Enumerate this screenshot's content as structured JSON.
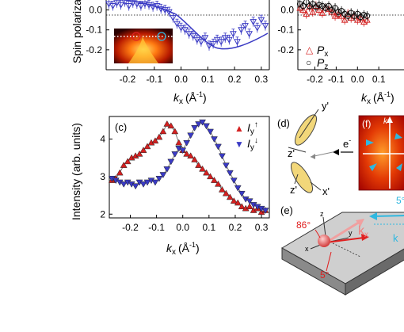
{
  "chart_data": [
    {
      "type": "scatter",
      "panel": "top-left",
      "ylabel": "Spin polarization",
      "xlabel_main": "k",
      "xlabel_sub": "x",
      "xlabel_unit": "(Å",
      "xlabel_exp": "-1",
      "xlabel_close": ")",
      "xlim": [
        -0.28,
        0.33
      ],
      "ylim": [
        -0.3,
        0.05
      ],
      "yticks": [
        "0.0",
        "-0.1",
        "-0.2"
      ],
      "xticks": [
        "-0.2",
        "-0.1",
        "0.0",
        "0.1",
        "0.2",
        "0.3"
      ],
      "series": [
        {
          "color": "#3a3ac4",
          "x": [
            -0.27,
            -0.255,
            -0.24,
            -0.225,
            -0.21,
            -0.195,
            -0.18,
            -0.165,
            -0.15,
            -0.135,
            -0.12,
            -0.105,
            -0.09,
            -0.075,
            -0.06,
            -0.045,
            -0.03,
            -0.015,
            0.0,
            0.015,
            0.03,
            0.045,
            0.06,
            0.075,
            0.09,
            0.105,
            0.12,
            0.135,
            0.15,
            0.165,
            0.18,
            0.195,
            0.21,
            0.225,
            0.24,
            0.255,
            0.27,
            0.285,
            0.3,
            0.315
          ],
          "y": [
            0.03,
            0.02,
            0.035,
            0.025,
            0.04,
            0.02,
            0.035,
            0.03,
            0.02,
            0.03,
            0.025,
            0.015,
            0.02,
            0.005,
            0.0,
            -0.01,
            -0.04,
            -0.07,
            -0.09,
            -0.1,
            -0.12,
            -0.13,
            -0.15,
            -0.16,
            -0.14,
            -0.18,
            -0.17,
            -0.15,
            -0.16,
            -0.14,
            -0.15,
            -0.12,
            -0.16,
            -0.1,
            -0.08,
            -0.12,
            -0.06,
            -0.09,
            -0.05,
            -0.08
          ]
        }
      ]
    },
    {
      "type": "scatter",
      "panel": "top-right",
      "xlabel_main": "k",
      "xlabel_sub": "x",
      "xlabel_unit": "(Å",
      "xlabel_exp": "-1",
      "xlabel_close": ")",
      "xlim": [
        -0.28,
        0.33
      ],
      "ylim": [
        -0.3,
        0.05
      ],
      "yticks": [
        "0.0",
        "-0.1",
        "-0.2"
      ],
      "xticks": [
        "-0.2",
        "-0.1",
        "0.0",
        "0.1"
      ],
      "legend": [
        {
          "symbol": "△",
          "label": "P",
          "sub": "x",
          "color": "#d42020"
        },
        {
          "symbol": "○",
          "label": "P",
          "sub": "z",
          "color": "#111111"
        }
      ],
      "series": [
        {
          "color": "#d42020",
          "x": [
            -0.27,
            -0.255,
            -0.24,
            -0.225,
            -0.21,
            -0.195,
            -0.18,
            -0.165,
            -0.15,
            -0.135,
            -0.12,
            -0.105,
            -0.09,
            -0.075,
            -0.06,
            -0.045,
            -0.03,
            -0.015,
            0.0,
            0.015,
            0.03,
            0.045
          ],
          "y": [
            0.01,
            0.0,
            -0.02,
            0.015,
            -0.01,
            0.02,
            0.0,
            -0.015,
            0.01,
            0.005,
            -0.01,
            -0.03,
            -0.02,
            -0.03,
            -0.05,
            -0.02,
            -0.04,
            -0.03,
            -0.05,
            -0.04,
            -0.06,
            -0.05
          ]
        },
        {
          "color": "#111111",
          "x": [
            -0.27,
            -0.255,
            -0.24,
            -0.225,
            -0.21,
            -0.195,
            -0.18,
            -0.165,
            -0.15,
            -0.135,
            -0.12,
            -0.105,
            -0.09,
            -0.075,
            -0.06,
            -0.045,
            -0.03,
            -0.015,
            0.0,
            0.015,
            0.03,
            0.045
          ],
          "y": [
            0.03,
            0.02,
            0.04,
            0.02,
            0.03,
            0.015,
            0.025,
            0.02,
            0.01,
            0.02,
            0.0,
            0.01,
            -0.01,
            -0.005,
            -0.02,
            -0.03,
            -0.015,
            -0.03,
            -0.02,
            -0.035,
            -0.025,
            -0.03
          ]
        }
      ]
    },
    {
      "type": "scatter",
      "panel": "c",
      "label": "(c)",
      "ylabel": "Intensity (arb. units)",
      "xlabel_main": "k",
      "xlabel_sub": "x",
      "xlabel_unit": "(Å",
      "xlabel_exp": "-1",
      "xlabel_close": ")",
      "xlim": [
        -0.28,
        0.33
      ],
      "ylim": [
        1.9,
        4.6
      ],
      "yticks": [
        "4",
        "3",
        "2"
      ],
      "xticks": [
        "-0.2",
        "-0.1",
        "0.0",
        "0.1",
        "0.2",
        "0.3"
      ],
      "legend": [
        {
          "symbol": "▲",
          "label": "I",
          "sub": "y",
          "arrow": "↑",
          "color": "#d42020"
        },
        {
          "symbol": "▼",
          "label": "I",
          "sub": "y",
          "arrow": "↓",
          "color": "#3a3ac4"
        }
      ],
      "series": [
        {
          "color": "#d42020",
          "marker": "up",
          "x": [
            -0.27,
            -0.255,
            -0.24,
            -0.225,
            -0.21,
            -0.195,
            -0.18,
            -0.165,
            -0.15,
            -0.135,
            -0.12,
            -0.105,
            -0.09,
            -0.075,
            -0.06,
            -0.045,
            -0.03,
            -0.015,
            0.0,
            0.015,
            0.03,
            0.045,
            0.06,
            0.075,
            0.09,
            0.105,
            0.12,
            0.135,
            0.15,
            0.165,
            0.18,
            0.195,
            0.21,
            0.225,
            0.24,
            0.255,
            0.27,
            0.285,
            0.3,
            0.315
          ],
          "y": [
            2.9,
            2.95,
            3.1,
            3.3,
            3.4,
            3.5,
            3.55,
            3.6,
            3.7,
            3.8,
            3.9,
            3.95,
            4.05,
            4.2,
            4.4,
            4.35,
            4.2,
            3.9,
            3.7,
            3.6,
            3.55,
            3.45,
            3.3,
            3.2,
            3.1,
            3.0,
            2.9,
            2.8,
            2.65,
            2.55,
            2.45,
            2.35,
            2.3,
            2.2,
            2.15,
            2.2,
            2.1,
            2.15,
            2.05,
            2.1
          ]
        },
        {
          "color": "#3a3ac4",
          "marker": "down",
          "x": [
            -0.27,
            -0.255,
            -0.24,
            -0.225,
            -0.21,
            -0.195,
            -0.18,
            -0.165,
            -0.15,
            -0.135,
            -0.12,
            -0.105,
            -0.09,
            -0.075,
            -0.06,
            -0.045,
            -0.03,
            -0.015,
            0.0,
            0.015,
            0.03,
            0.045,
            0.06,
            0.075,
            0.09,
            0.105,
            0.12,
            0.135,
            0.15,
            0.165,
            0.18,
            0.195,
            0.21,
            0.225,
            0.24,
            0.255,
            0.27,
            0.285,
            0.3,
            0.315
          ],
          "y": [
            2.95,
            2.9,
            2.85,
            2.8,
            2.85,
            2.8,
            2.75,
            2.85,
            2.8,
            2.85,
            2.9,
            2.85,
            2.95,
            3.05,
            3.2,
            3.4,
            3.6,
            3.75,
            3.7,
            3.9,
            4.1,
            4.3,
            4.4,
            4.45,
            4.35,
            4.2,
            4.0,
            3.8,
            3.55,
            3.3,
            3.1,
            2.9,
            2.7,
            2.55,
            2.4,
            2.35,
            2.25,
            2.2,
            2.15,
            2.1
          ]
        }
      ]
    }
  ],
  "diagram_d": {
    "label": "(d)",
    "y_prime": "y'",
    "z_prime_top": "z'",
    "z_prime_bottom": "z'",
    "x_prime": "x'",
    "electron": "e",
    "electron_sup": "-"
  },
  "panel_e": {
    "label": "(e)",
    "angle_86": "86°",
    "angle_5": "5°",
    "axis_z": "z",
    "axis_x": "x",
    "axis_y": "y",
    "kx": "k",
    "kx_sub": "x"
  },
  "panel_f": {
    "label": "(f)",
    "k_letter": "k",
    "angle_5_cyan": "5°"
  },
  "colors": {
    "red": "#d42020",
    "blue": "#3a3ac4",
    "cyan": "#2fb8e0",
    "yellow": "#f2d77a"
  }
}
